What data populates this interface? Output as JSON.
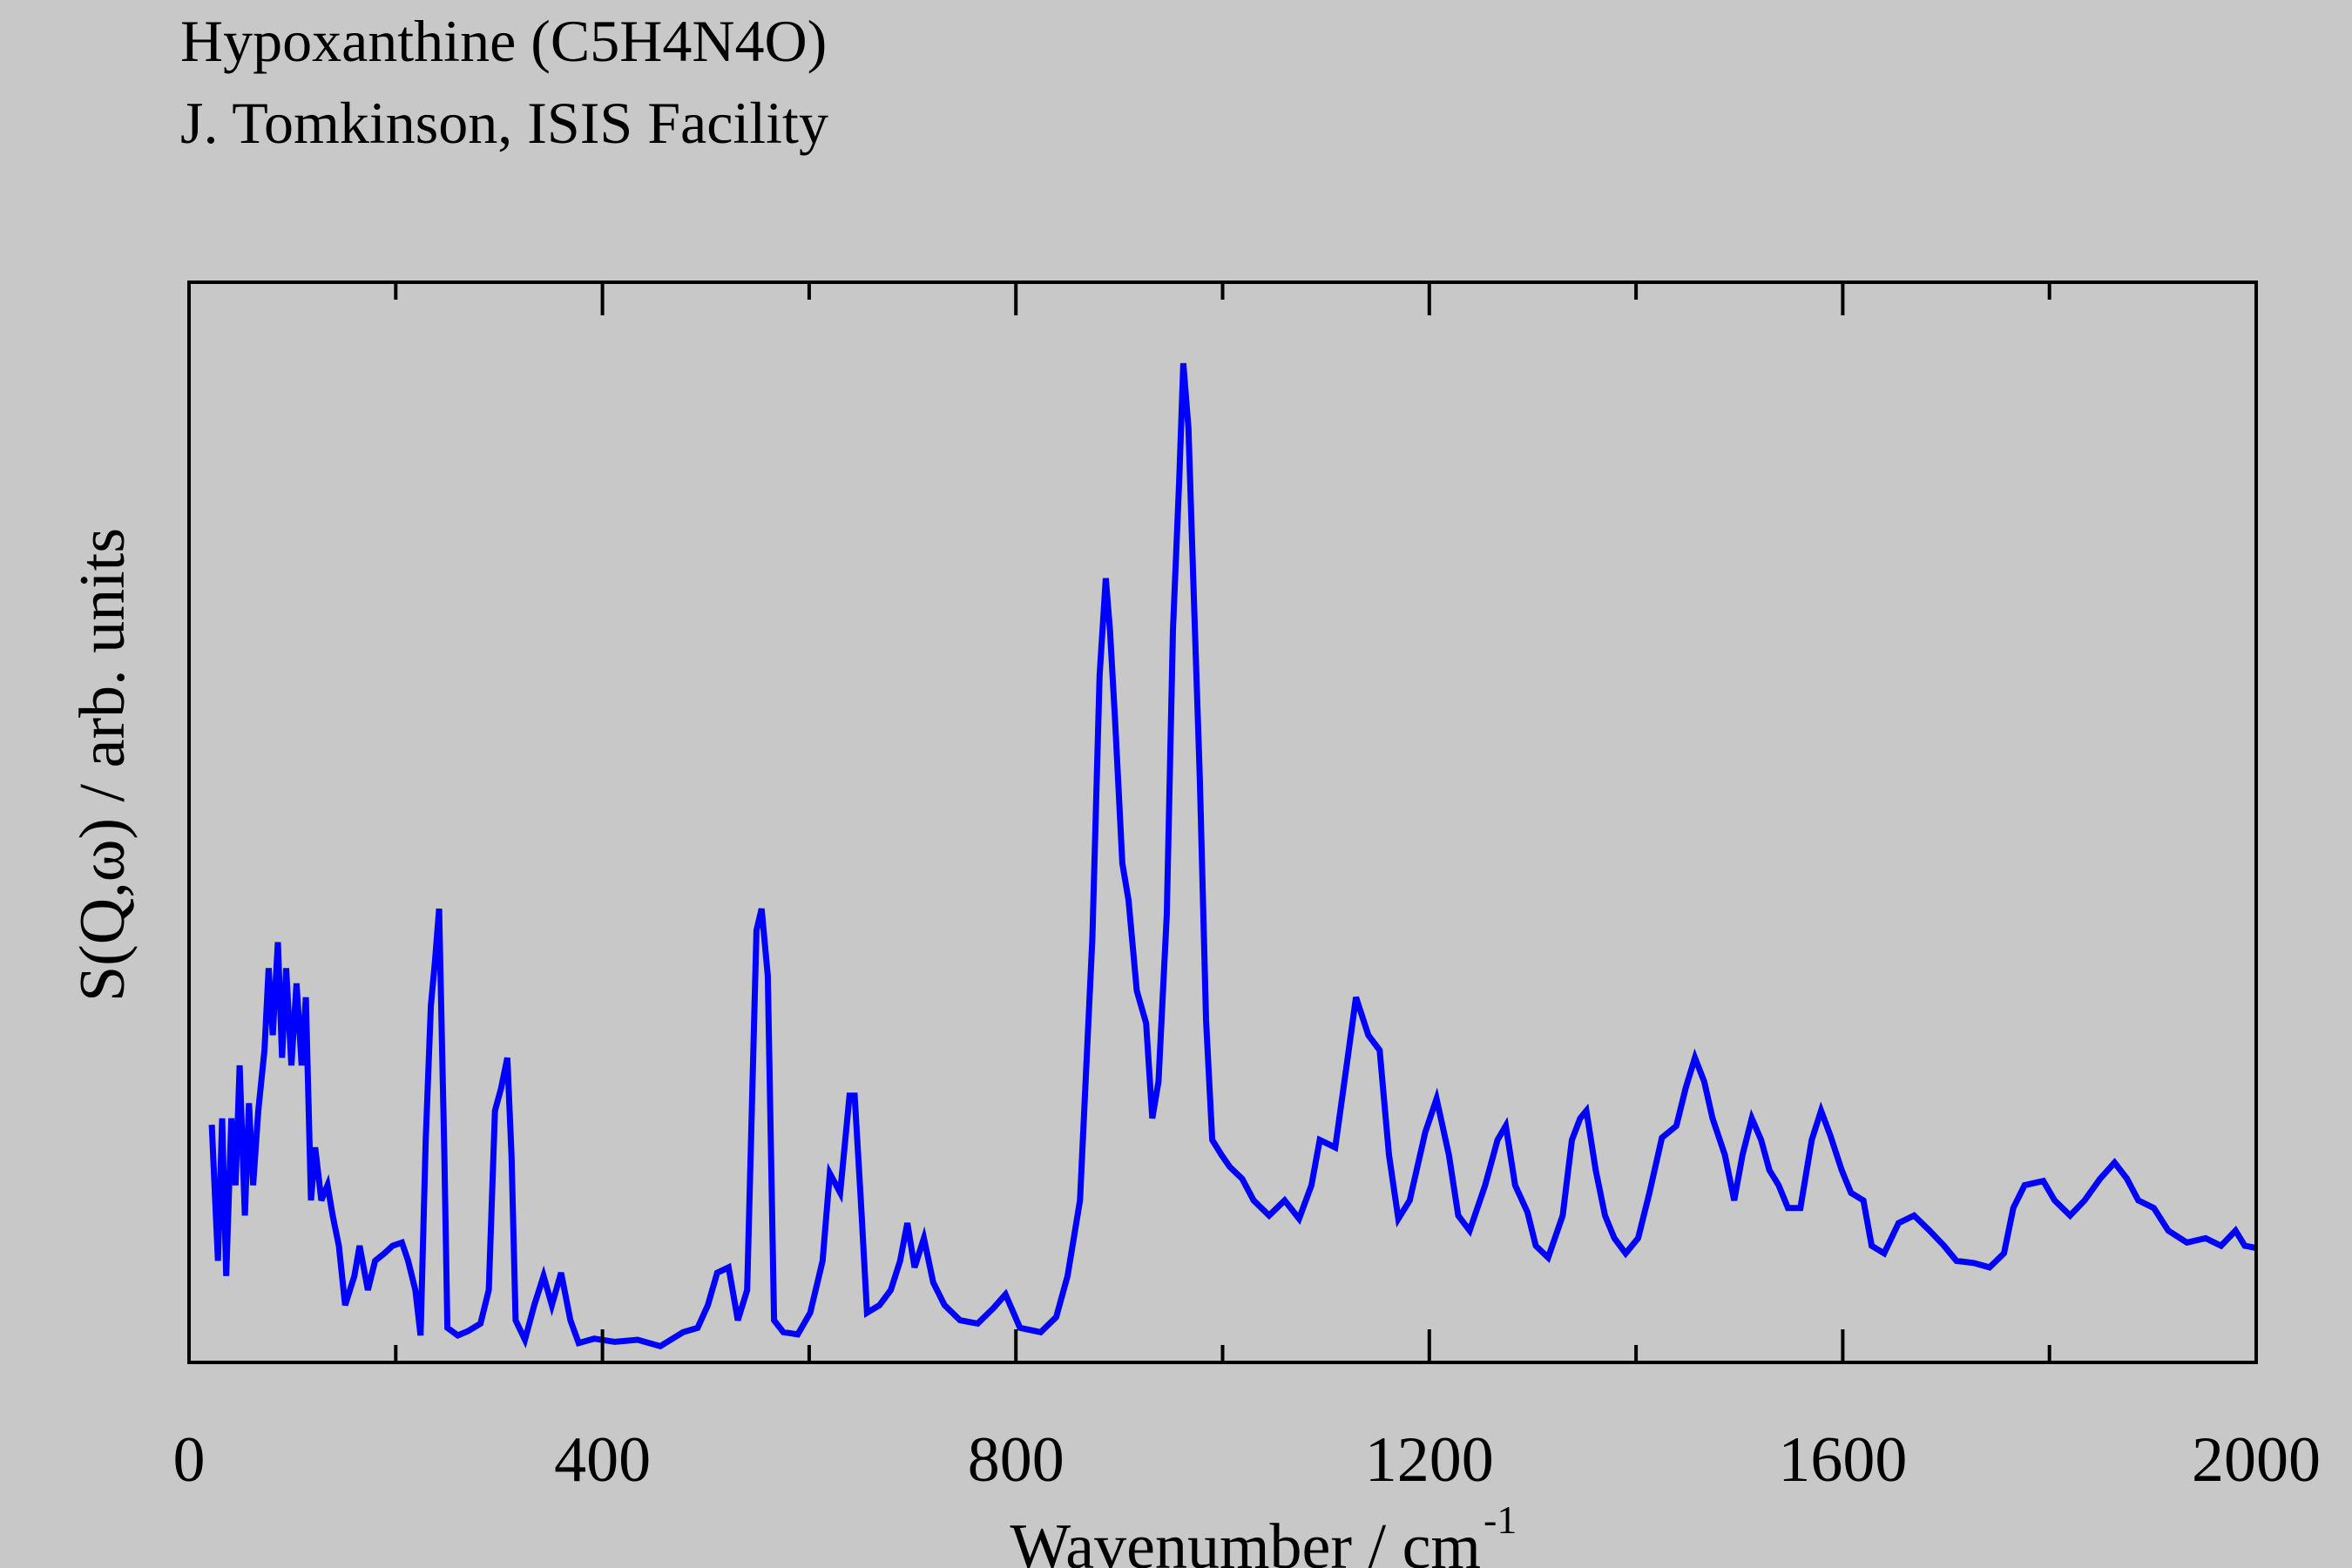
{
  "chart_data": {
    "type": "line",
    "title": "Hypoxanthine (C5H4N4O)",
    "subtitle": "J. Tomkinson, ISIS Facility",
    "xlabel": "Wavenumber / cm",
    "xlabel_superscript": "-1",
    "ylabel": "S(Q,ω) / arb. units",
    "xlim": [
      0,
      2000
    ],
    "ylim": [
      0,
      100
    ],
    "xticks": [
      0,
      400,
      800,
      1200,
      1600,
      2000
    ],
    "xminorticks": [
      200,
      600,
      1000,
      1400,
      1800
    ],
    "series": [
      {
        "name": "Hypoxanthine",
        "color": "#0000ff",
        "x": [
          22,
          28,
          32,
          36,
          41,
          45,
          49,
          54,
          58,
          62,
          67,
          73,
          77,
          81,
          86,
          90,
          94,
          99,
          104,
          109,
          113,
          118,
          122,
          128,
          134,
          139,
          145,
          151,
          160,
          165,
          173,
          180,
          189,
          197,
          206,
          212,
          219,
          224,
          229,
          234,
          238,
          242,
          247,
          250,
          260,
          270,
          282,
          290,
          296,
          302,
          308,
          312,
          316,
          325,
          334,
          343,
          351,
          360,
          369,
          377,
          392,
          412,
          434,
          456,
          478,
          492,
          502,
          511,
          522,
          531,
          540,
          549,
          554,
          560,
          566,
          575,
          589,
          601,
          613,
          620,
          630,
          639,
          644,
          650,
          656,
          668,
          679,
          688,
          695,
          702,
          711,
          720,
          731,
          746,
          763,
          778,
          790,
          804,
          824,
          839,
          850,
          862,
          874,
          881,
          887,
          891,
          896,
          903,
          909,
          917,
          926,
          932,
          938,
          946,
          952,
          958,
          962,
          967,
          972,
          978,
          984,
          990,
          999,
          1007,
          1019,
          1030,
          1045,
          1060,
          1074,
          1086,
          1094,
          1109,
          1120,
          1129,
          1141,
          1152,
          1161,
          1170,
          1181,
          1196,
          1207,
          1219,
          1228,
          1239,
          1254,
          1266,
          1274,
          1283,
          1295,
          1303,
          1315,
          1329,
          1338,
          1346,
          1352,
          1361,
          1370,
          1379,
          1390,
          1402,
          1413,
          1425,
          1439,
          1448,
          1457,
          1466,
          1474,
          1486,
          1495,
          1503,
          1512,
          1521,
          1529,
          1538,
          1547,
          1559,
          1570,
          1579,
          1588,
          1599,
          1608,
          1620,
          1628,
          1640,
          1654,
          1669,
          1684,
          1698,
          1710,
          1727,
          1742,
          1756,
          1765,
          1776,
          1794,
          1805,
          1820,
          1834,
          1849,
          1863,
          1875,
          1886,
          1901,
          1915,
          1933,
          1951,
          1966,
          1980,
          1989,
          2000
        ],
        "values": [
          22,
          9.4,
          22.6,
          8,
          22.6,
          16.4,
          27.5,
          13.6,
          24,
          16.4,
          23.3,
          28.9,
          36.5,
          30.3,
          38.9,
          28.2,
          36.5,
          27.5,
          35.1,
          27.5,
          33.8,
          15,
          19.9,
          15,
          16.4,
          13.6,
          10.8,
          5.3,
          8,
          10.8,
          6.7,
          9.4,
          10.1,
          10.8,
          11.1,
          9.4,
          6.7,
          2.5,
          20.6,
          33,
          37.2,
          42,
          19.2,
          3.2,
          2.5,
          2.9,
          3.6,
          6.7,
          23.3,
          25.4,
          28.2,
          19.2,
          3.9,
          2.1,
          5.3,
          8,
          5.3,
          8.3,
          3.9,
          1.8,
          2.2,
          1.9,
          2.1,
          1.5,
          2.8,
          3.2,
          5.3,
          8.3,
          8.8,
          3.9,
          6.7,
          40,
          42,
          35.8,
          3.9,
          2.8,
          2.6,
          4.6,
          9.4,
          17.5,
          15.7,
          24.7,
          24.7,
          15,
          4.6,
          5.3,
          6.7,
          9.4,
          12.9,
          8.8,
          11.5,
          7.4,
          5.3,
          3.9,
          3.6,
          5,
          6.3,
          3.2,
          2.8,
          4.2,
          8,
          15,
          39.3,
          63.6,
          72.6,
          67.8,
          59.4,
          46.2,
          42.8,
          34.4,
          31.4,
          22.6,
          26,
          41.4,
          67.8,
          81.7,
          92.5,
          86.5,
          71.3,
          53.9,
          31.7,
          20.6,
          19.2,
          18.1,
          17,
          15,
          13.6,
          15,
          13.3,
          16.4,
          20.6,
          19.9,
          27.5,
          33.8,
          30.3,
          28.9,
          19.2,
          13.3,
          15,
          21.3,
          24.4,
          19.2,
          13.6,
          12.2,
          16.4,
          20.6,
          21.9,
          16.4,
          13.9,
          10.8,
          9.7,
          13.6,
          20.6,
          22.6,
          23.3,
          17.8,
          13.6,
          11.5,
          10.1,
          11.5,
          15.7,
          20.8,
          21.9,
          25.4,
          28.2,
          26,
          22.6,
          19.2,
          15,
          19.2,
          22.6,
          20.6,
          17.8,
          16.4,
          14.3,
          14.3,
          20.6,
          23.3,
          21,
          17.8,
          15.7,
          15,
          10.8,
          10.1,
          12.9,
          13.6,
          12.2,
          10.8,
          9.4,
          9.2,
          8.8,
          10.1,
          14.3,
          16.4,
          16.8,
          15,
          13.6,
          15,
          17,
          18.5,
          17,
          15,
          14.3,
          12.2,
          11.1,
          11.5,
          10.8,
          12.2,
          10.8,
          10.6
        ]
      }
    ]
  }
}
